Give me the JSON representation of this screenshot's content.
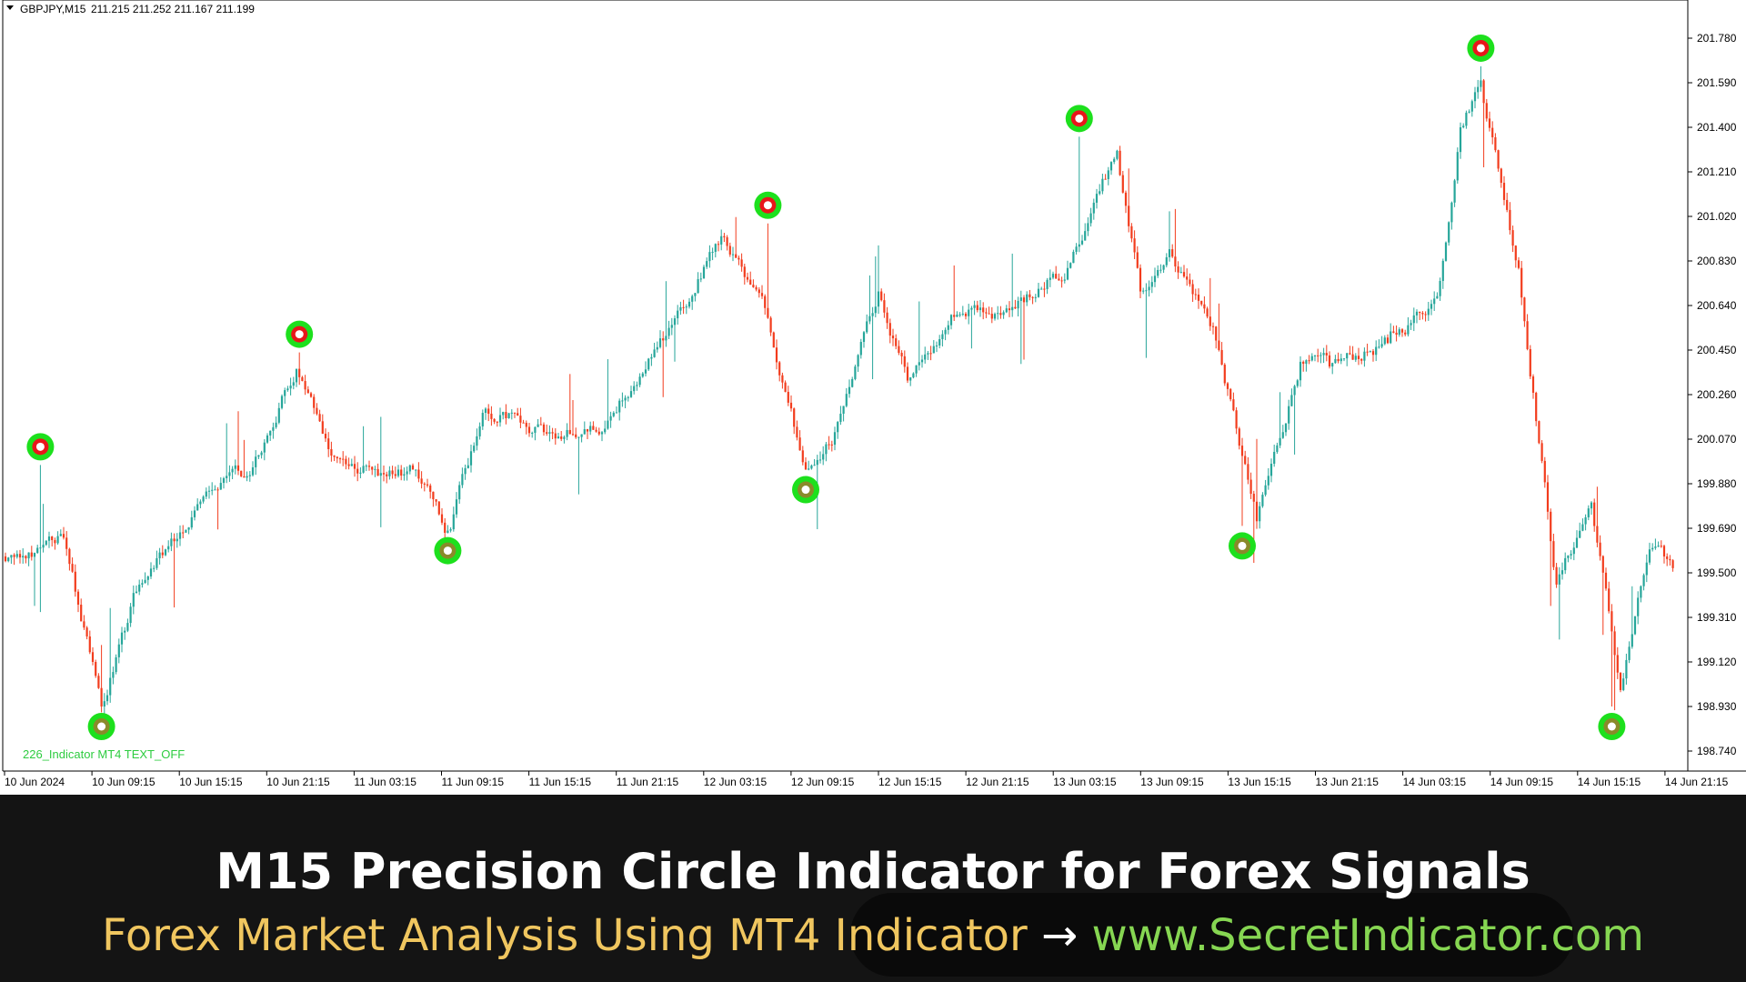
{
  "chart_header": {
    "symbol": "GBPJPY,M15",
    "ohlc": "211.215 211.252 211.167 211.199"
  },
  "indicator_label": "226_Indicator MT4 TEXT_OFF",
  "colors": {
    "bull": "#26a69a",
    "bear": "#f23c1d",
    "signal_ring": "#1de01d",
    "sell_dot": "#e8161b",
    "buy_dot": "#8a8a2a"
  },
  "price_axis": {
    "labels": [
      "201.780",
      "201.590",
      "201.400",
      "201.210",
      "201.020",
      "200.830",
      "200.640",
      "200.450",
      "200.260",
      "200.070",
      "199.880",
      "199.690",
      "199.500",
      "199.310",
      "199.120",
      "198.930",
      "198.740"
    ]
  },
  "time_axis": {
    "labels": [
      "10 Jun 2024",
      "10 Jun 09:15",
      "10 Jun 15:15",
      "10 Jun 21:15",
      "11 Jun 03:15",
      "11 Jun 09:15",
      "11 Jun 15:15",
      "11 Jun 21:15",
      "12 Jun 03:15",
      "12 Jun 09:15",
      "12 Jun 15:15",
      "12 Jun 21:15",
      "13 Jun 03:15",
      "13 Jun 09:15",
      "13 Jun 15:15",
      "13 Jun 21:15",
      "14 Jun 03:15",
      "14 Jun 09:15",
      "14 Jun 15:15",
      "14 Jun 21:15"
    ]
  },
  "chart_data": {
    "type": "candlestick",
    "symbol": "GBPJPY",
    "timeframe": "M15",
    "ylim": [
      198.7,
      201.88
    ],
    "anchors": [
      {
        "i": 0,
        "p": 199.55
      },
      {
        "i": 20,
        "p": 199.65
      },
      {
        "i": 33,
        "p": 198.93
      },
      {
        "i": 45,
        "p": 199.42
      },
      {
        "i": 55,
        "p": 199.6
      },
      {
        "i": 70,
        "p": 199.85
      },
      {
        "i": 85,
        "p": 199.95
      },
      {
        "i": 100,
        "p": 200.37
      },
      {
        "i": 112,
        "p": 200.0
      },
      {
        "i": 130,
        "p": 199.92
      },
      {
        "i": 140,
        "p": 199.94
      },
      {
        "i": 152,
        "p": 199.68
      },
      {
        "i": 165,
        "p": 200.2
      },
      {
        "i": 185,
        "p": 200.1
      },
      {
        "i": 205,
        "p": 200.1
      },
      {
        "i": 225,
        "p": 200.5
      },
      {
        "i": 245,
        "p": 200.9
      },
      {
        "i": 260,
        "p": 200.68
      },
      {
        "i": 275,
        "p": 199.94
      },
      {
        "i": 285,
        "p": 200.1
      },
      {
        "i": 300,
        "p": 200.7
      },
      {
        "i": 310,
        "p": 200.32
      },
      {
        "i": 325,
        "p": 200.6
      },
      {
        "i": 345,
        "p": 200.62
      },
      {
        "i": 365,
        "p": 200.8
      },
      {
        "i": 382,
        "p": 201.3
      },
      {
        "i": 390,
        "p": 200.7
      },
      {
        "i": 400,
        "p": 200.88
      },
      {
        "i": 415,
        "p": 200.55
      },
      {
        "i": 430,
        "p": 199.72
      },
      {
        "i": 445,
        "p": 200.4
      },
      {
        "i": 455,
        "p": 200.38
      },
      {
        "i": 475,
        "p": 200.48
      },
      {
        "i": 492,
        "p": 200.68
      },
      {
        "i": 500,
        "p": 201.4
      },
      {
        "i": 507,
        "p": 201.6
      },
      {
        "i": 520,
        "p": 200.8
      },
      {
        "i": 533,
        "p": 199.45
      },
      {
        "i": 545,
        "p": 199.8
      },
      {
        "i": 555,
        "p": 199.0
      },
      {
        "i": 565,
        "p": 199.6
      },
      {
        "i": 573,
        "p": 199.52
      }
    ],
    "signals": [
      {
        "type": "sell",
        "time_index": 12,
        "price": 199.96
      },
      {
        "type": "buy",
        "time_index": 33,
        "price": 198.93
      },
      {
        "type": "sell",
        "time_index": 101,
        "price": 200.44
      },
      {
        "type": "buy",
        "time_index": 152,
        "price": 199.68
      },
      {
        "type": "sell",
        "time_index": 262,
        "price": 200.99
      },
      {
        "type": "buy",
        "time_index": 275,
        "price": 199.94
      },
      {
        "type": "sell",
        "time_index": 369,
        "price": 201.36
      },
      {
        "type": "buy",
        "time_index": 425,
        "price": 199.7
      },
      {
        "type": "sell",
        "time_index": 507,
        "price": 201.66
      },
      {
        "type": "buy",
        "time_index": 552,
        "price": 198.93
      }
    ]
  },
  "banner": {
    "title": "M15 Precision Circle Indicator for Forex Signals",
    "subtitle_left": "Forex Market Analysis Using MT4 Indicator",
    "arrow": "→",
    "subtitle_right": "www.SecretIndicator.com"
  }
}
